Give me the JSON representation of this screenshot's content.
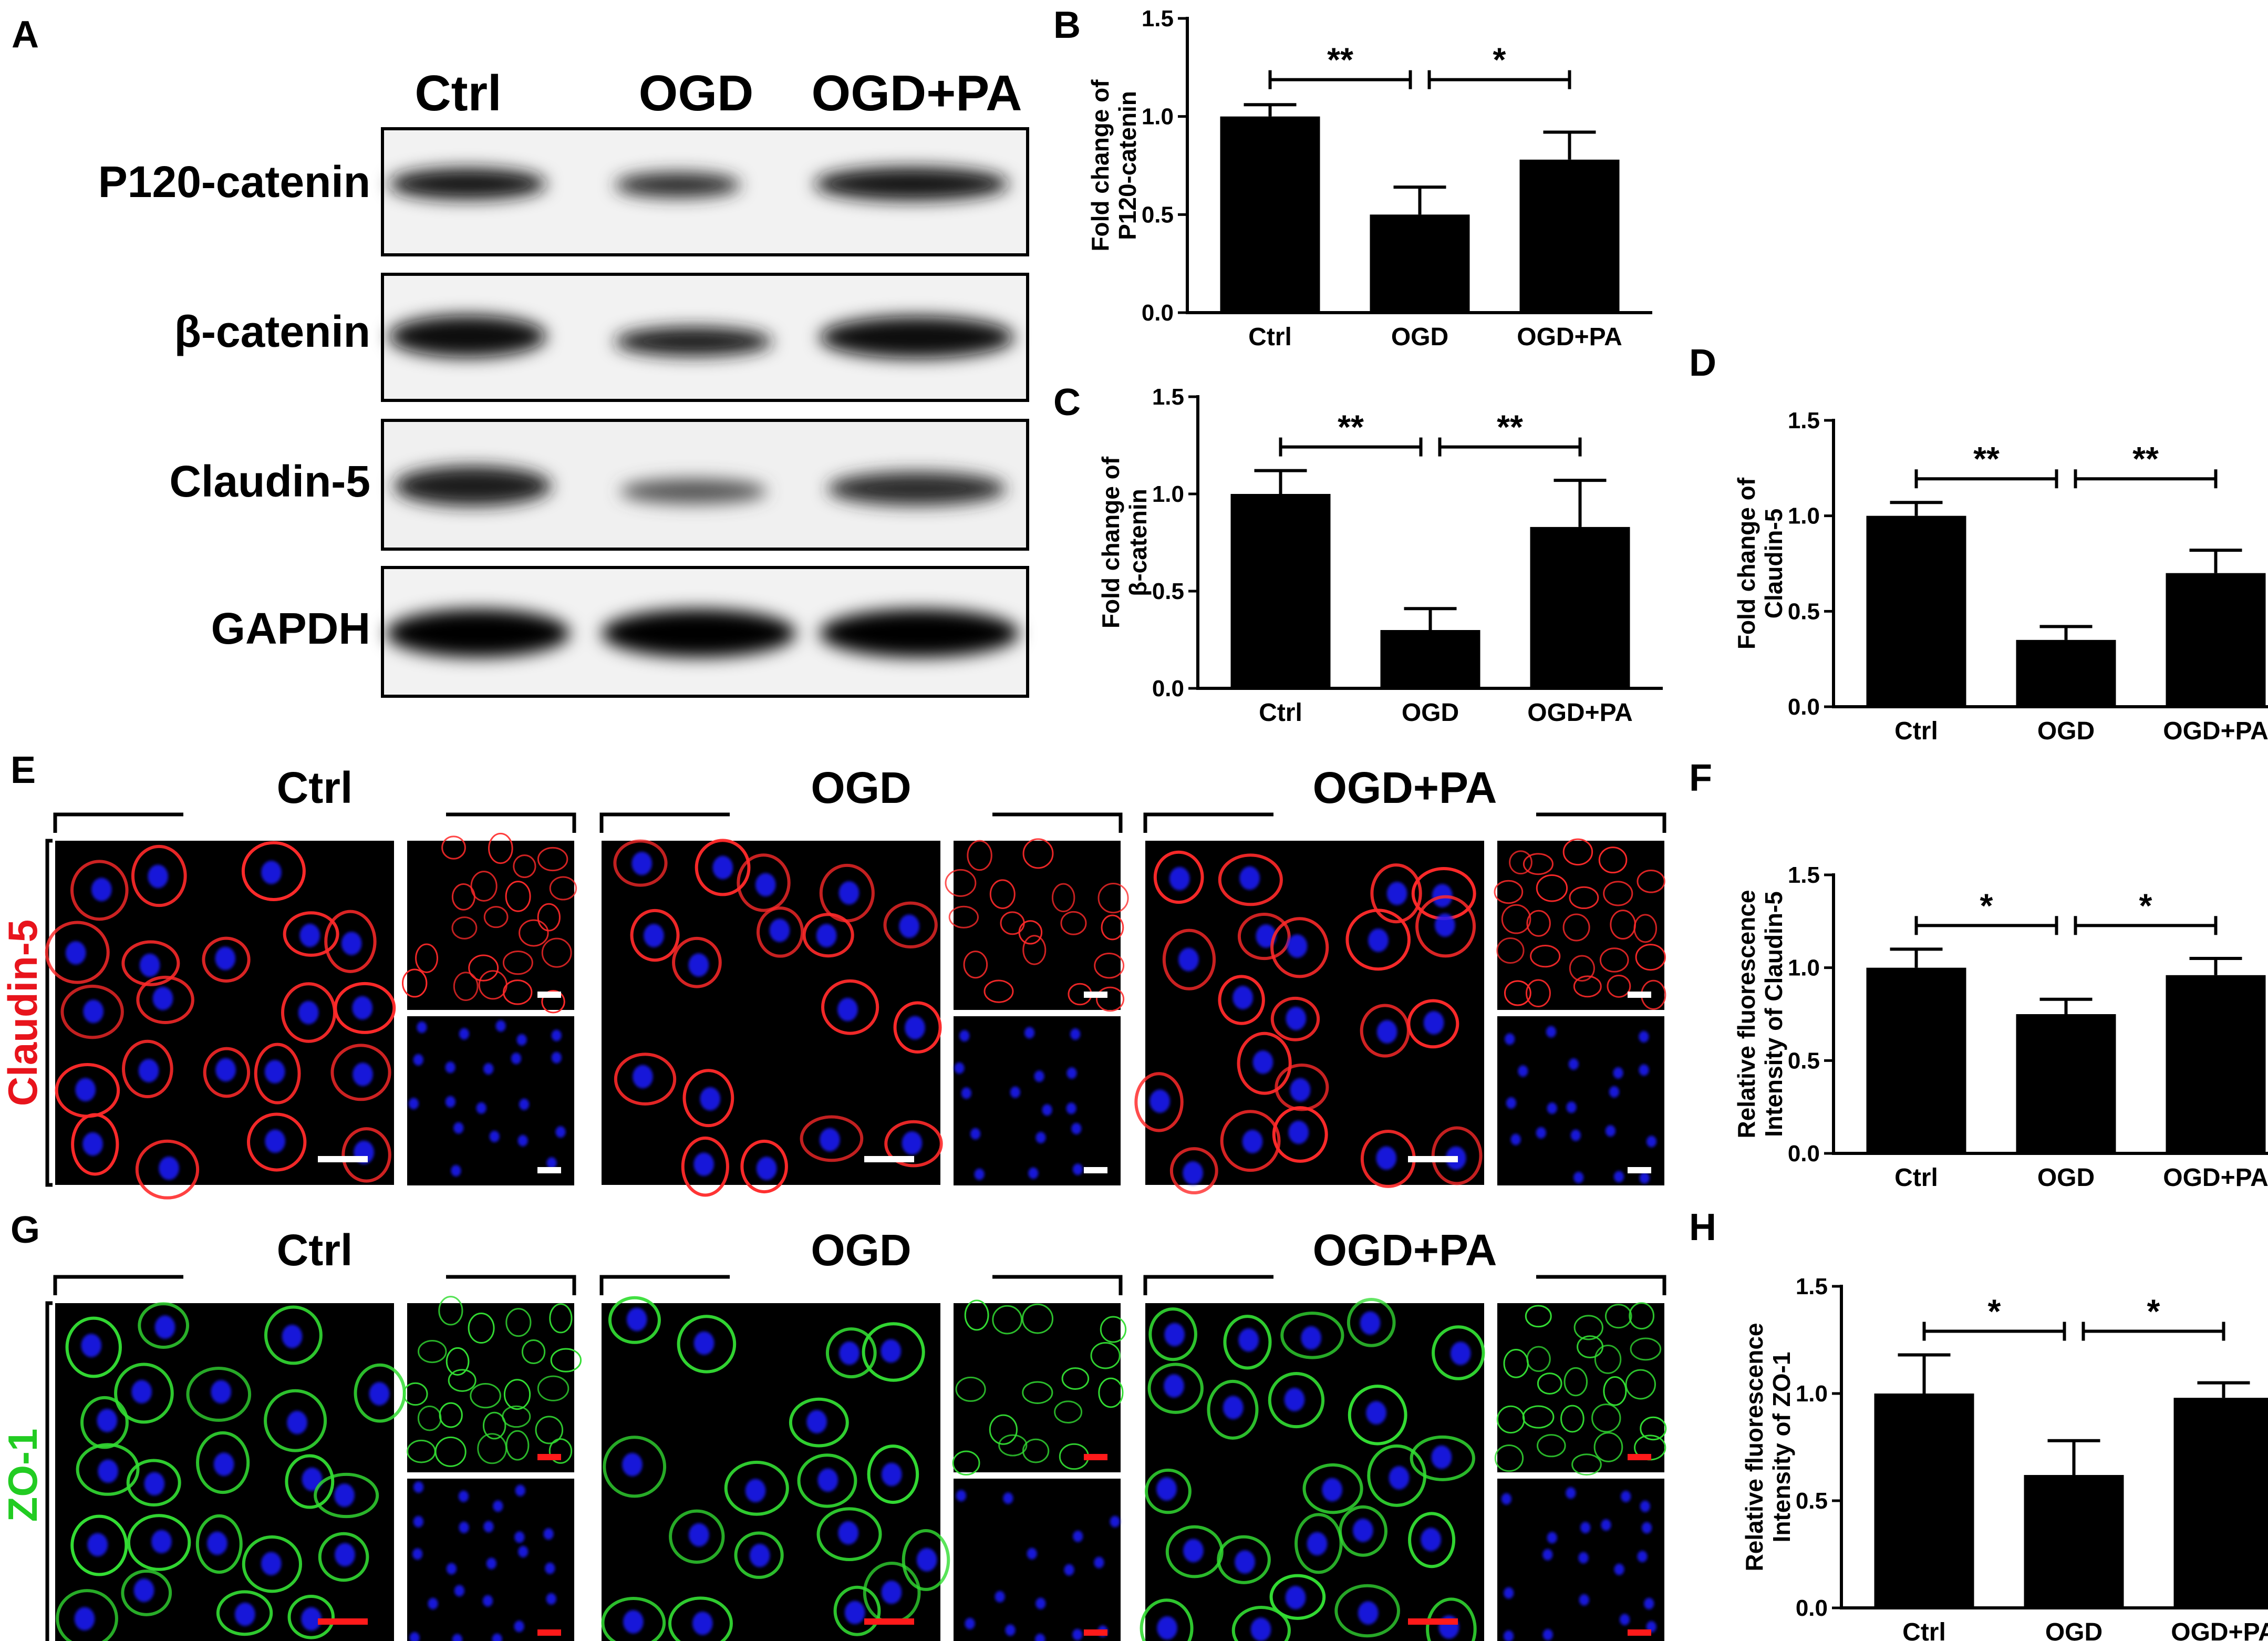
{
  "panel_letters": [
    "A",
    "B",
    "C",
    "D",
    "E",
    "F",
    "G",
    "H"
  ],
  "western_blot": {
    "columns": [
      "Ctrl",
      "OGD",
      "OGD+PA"
    ],
    "rows": [
      "P120-catenin",
      "β-catenin",
      "Claudin-5",
      "GAPDH"
    ]
  },
  "micrographs": {
    "E": {
      "groups": [
        "Ctrl",
        "OGD",
        "OGD+PA"
      ],
      "stain_label": "Claudin-5",
      "stain_color": "#e8141c",
      "channel_color": "#ff2a2a"
    },
    "G": {
      "groups": [
        "Ctrl",
        "OGD",
        "OGD+PA"
      ],
      "stain_label": "ZO-1",
      "stain_color": "#22cc22",
      "channel_color": "#33dd33"
    }
  },
  "colors": {
    "bar": "#000000",
    "nucleus": "#1a1aff",
    "scale_bar_white": "#ffffff",
    "scale_bar_red": "#ff1a1a"
  },
  "chart_data": [
    {
      "panel": "B",
      "type": "bar",
      "categories": [
        "Ctrl",
        "OGD",
        "OGD+PA"
      ],
      "values": [
        1.0,
        0.5,
        0.78
      ],
      "errors": [
        0.06,
        0.14,
        0.14
      ],
      "ylabel": [
        "Fold change of",
        "P120-catenin"
      ],
      "ylim": [
        0,
        1.5
      ],
      "yticks": [
        "0.0",
        "0.5",
        "1.0",
        "1.5"
      ],
      "significance": [
        {
          "from": 0,
          "to": 1,
          "label": "**"
        },
        {
          "from": 1,
          "to": 2,
          "label": "*"
        }
      ]
    },
    {
      "panel": "C",
      "type": "bar",
      "categories": [
        "Ctrl",
        "OGD",
        "OGD+PA"
      ],
      "values": [
        1.0,
        0.3,
        0.83
      ],
      "errors": [
        0.12,
        0.11,
        0.24
      ],
      "ylabel": [
        "Fold change of",
        "β-catenin"
      ],
      "ylim": [
        0,
        1.5
      ],
      "yticks": [
        "0.0",
        "0.5",
        "1.0",
        "1.5"
      ],
      "significance": [
        {
          "from": 0,
          "to": 1,
          "label": "**"
        },
        {
          "from": 1,
          "to": 2,
          "label": "**"
        }
      ]
    },
    {
      "panel": "D",
      "type": "bar",
      "categories": [
        "Ctrl",
        "OGD",
        "OGD+PA"
      ],
      "values": [
        1.0,
        0.35,
        0.7
      ],
      "errors": [
        0.07,
        0.07,
        0.12
      ],
      "ylabel": [
        "Fold change of",
        "Claudin-5"
      ],
      "ylim": [
        0,
        1.5
      ],
      "yticks": [
        "0.0",
        "0.5",
        "1.0",
        "1.5"
      ],
      "significance": [
        {
          "from": 0,
          "to": 1,
          "label": "**"
        },
        {
          "from": 1,
          "to": 2,
          "label": "**"
        }
      ]
    },
    {
      "panel": "F",
      "type": "bar",
      "categories": [
        "Ctrl",
        "OGD",
        "OGD+PA"
      ],
      "values": [
        1.0,
        0.75,
        0.96
      ],
      "errors": [
        0.1,
        0.08,
        0.09
      ],
      "ylabel": [
        "Relative fluorescence",
        "Intensity of Claudin-5"
      ],
      "ylim": [
        0,
        1.5
      ],
      "yticks": [
        "0.0",
        "0.5",
        "1.0",
        "1.5"
      ],
      "significance": [
        {
          "from": 0,
          "to": 1,
          "label": "*"
        },
        {
          "from": 1,
          "to": 2,
          "label": "*"
        }
      ]
    },
    {
      "panel": "H",
      "type": "bar",
      "categories": [
        "Ctrl",
        "OGD",
        "OGD+PA"
      ],
      "values": [
        1.0,
        0.62,
        0.98
      ],
      "errors": [
        0.18,
        0.16,
        0.07
      ],
      "ylabel": [
        "Relative fluorescence",
        "Intensity of ZO-1"
      ],
      "ylim": [
        0,
        1.5
      ],
      "yticks": [
        "0.0",
        "0.5",
        "1.0",
        "1.5"
      ],
      "significance": [
        {
          "from": 0,
          "to": 1,
          "label": "*"
        },
        {
          "from": 1,
          "to": 2,
          "label": "*"
        }
      ]
    }
  ]
}
